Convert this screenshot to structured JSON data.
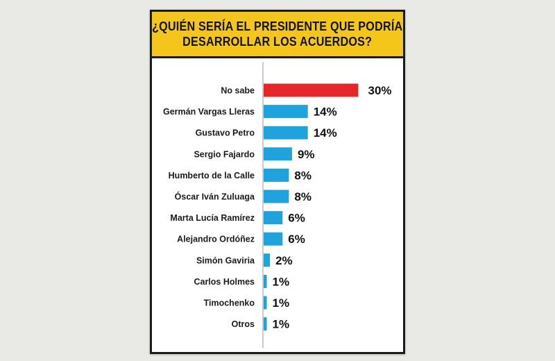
{
  "chart_data": {
    "type": "bar",
    "orientation": "horizontal",
    "title_lines": [
      "¿QUIÉN SERÍA EL PRESIDENTE QUE PODRÍA",
      "DESARROLLAR LOS ACUERDOS?"
    ],
    "categories": [
      "No sabe",
      "Germán Vargas Lleras",
      "Gustavo Petro",
      "Sergio Fajardo",
      "Humberto de la Calle",
      "Óscar Iván Zuluaga",
      "Marta Lucía Ramírez",
      "Alejandro Ordóñez",
      "Simón Gaviria",
      "Carlos Holmes",
      "Timochenko",
      "Otros"
    ],
    "values": [
      30,
      14,
      14,
      9,
      8,
      8,
      6,
      6,
      2,
      1,
      1,
      1
    ],
    "value_labels": [
      "30%",
      "14%",
      "14%",
      "9%",
      "8%",
      "8%",
      "6%",
      "6%",
      "2%",
      "1%",
      "1%",
      "1%"
    ],
    "unit": "%",
    "bar_colors": [
      "#e5262b",
      "#1fa3dc",
      "#1fa3dc",
      "#1fa3dc",
      "#1fa3dc",
      "#1fa3dc",
      "#1fa3dc",
      "#1fa3dc",
      "#1fa3dc",
      "#1fa3dc",
      "#1fa3dc",
      "#1fa3dc"
    ],
    "header_color": "#f4c61c",
    "grid": false
  }
}
